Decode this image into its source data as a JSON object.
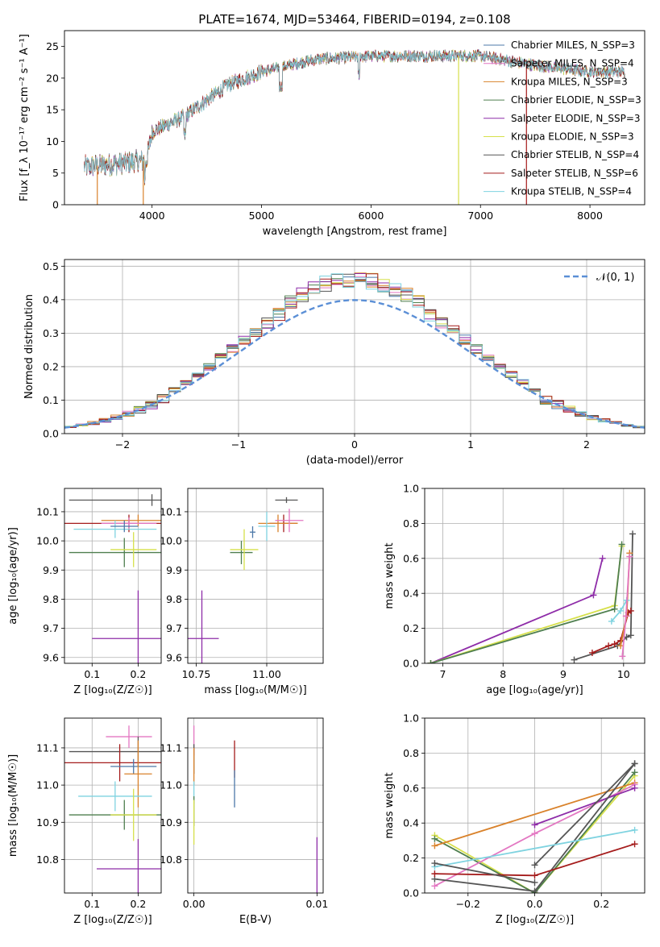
{
  "figure": {
    "title": "PLATE=1674, MJD=53464, FIBERID=0194, z=0.108"
  },
  "colors": {
    "chabrier_miles": "#4c78a8",
    "salpeter_miles": "#e377c2",
    "kroupa_miles": "#d9822b",
    "chabrier_elodie": "#4f7f4f",
    "salpeter_elodie": "#8e2ca8",
    "kroupa_elodie": "#d6e04b",
    "chabrier_stelib": "#555555",
    "salpeter_stelib": "#a51c1c",
    "kroupa_stelib": "#7fd3e0",
    "normal_curve": "#5b8fd6"
  },
  "chart_data": [
    {
      "id": "spectrum",
      "type": "line",
      "xlabel": "wavelength [Angstrom, rest frame]",
      "ylabel": "Flux [f_λ 10⁻¹⁷ erg cm⁻² s⁻¹ A⁻¹]",
      "xlim": [
        3200,
        8500
      ],
      "ylim": [
        0,
        27.5
      ],
      "xticks": [
        4000,
        5000,
        6000,
        7000,
        8000
      ],
      "yticks": [
        0,
        5,
        10,
        15,
        20,
        25
      ],
      "x_range_data": [
        3380,
        8320
      ],
      "continuum": [
        [
          3380,
          6
        ],
        [
          3700,
          6.5
        ],
        [
          3950,
          7
        ],
        [
          4000,
          11.5
        ],
        [
          4300,
          14
        ],
        [
          4700,
          19
        ],
        [
          5000,
          21
        ],
        [
          5500,
          23
        ],
        [
          6000,
          23.5
        ],
        [
          6500,
          23.5
        ],
        [
          7000,
          23.5
        ],
        [
          7500,
          22
        ],
        [
          8000,
          21
        ],
        [
          8300,
          21
        ]
      ],
      "legend": [
        {
          "label": "Chabrier MILES, N_SSP=3",
          "color_key": "chabrier_miles"
        },
        {
          "label": "Salpeter MILES, N_SSP=4",
          "color_key": "salpeter_miles"
        },
        {
          "label": "Kroupa MILES, N_SSP=3",
          "color_key": "kroupa_miles"
        },
        {
          "label": "Chabrier ELODIE, N_SSP=3",
          "color_key": "chabrier_elodie"
        },
        {
          "label": "Salpeter ELODIE, N_SSP=3",
          "color_key": "salpeter_elodie"
        },
        {
          "label": "Kroupa ELODIE, N_SSP=3",
          "color_key": "kroupa_elodie"
        },
        {
          "label": "Chabrier STELIB, N_SSP=4",
          "color_key": "chabrier_stelib"
        },
        {
          "label": "Salpeter STELIB, N_SSP=6",
          "color_key": "salpeter_stelib"
        },
        {
          "label": "Kroupa STELIB, N_SSP=4",
          "color_key": "kroupa_stelib"
        }
      ],
      "legend_placement": "upper right",
      "drops": [
        {
          "x": 3500,
          "color_key": "kroupa_miles"
        },
        {
          "x": 3920,
          "color_key": "kroupa_miles"
        },
        {
          "x": 6800,
          "color_key": "kroupa_elodie"
        },
        {
          "x": 7420,
          "color_key": "salpeter_stelib"
        }
      ]
    },
    {
      "id": "residuals",
      "type": "line",
      "xlabel": "(data-model)/error",
      "ylabel": "Normed distribution",
      "xlim": [
        -2.5,
        2.5
      ],
      "ylim": [
        0,
        0.52
      ],
      "xticks": [
        -2,
        -1,
        0,
        1,
        2
      ],
      "yticks": [
        0.0,
        0.1,
        0.2,
        0.3,
        0.4,
        0.5
      ],
      "grid": true,
      "normal_label": "𝒩(0, 1)",
      "normal_placement": "upper right",
      "bin_width": 0.1
    },
    {
      "id": "age_vs_z",
      "type": "scatter",
      "xlabel": "Z [log₁₀(Z/Z☉)]",
      "ylabel": "age  [log₁₀(age/yr)]",
      "xlim": [
        0.04,
        0.25
      ],
      "ylim": [
        9.58,
        10.18
      ],
      "xticks": [
        0.1,
        0.2
      ],
      "yticks": [
        9.6,
        9.7,
        9.8,
        9.9,
        10.0,
        10.1
      ],
      "grid": true,
      "points": [
        {
          "color_key": "chabrier_stelib",
          "x": 0.23,
          "y": 10.14,
          "xerr": 0.18,
          "yerr": 0.02
        },
        {
          "color_key": "salpeter_stelib",
          "x": 0.18,
          "y": 10.06,
          "xerr": 0.14,
          "yerr": 0.03
        },
        {
          "color_key": "kroupa_miles",
          "x": 0.2,
          "y": 10.07,
          "xerr": 0.08,
          "yerr": 0.02
        },
        {
          "color_key": "salpeter_miles",
          "x": 0.18,
          "y": 10.06,
          "xerr": 0.06,
          "yerr": 0.02
        },
        {
          "color_key": "kroupa_stelib",
          "x": 0.15,
          "y": 10.04,
          "xerr": 0.09,
          "yerr": 0.03
        },
        {
          "color_key": "chabrier_miles",
          "x": 0.17,
          "y": 10.05,
          "xerr": 0.03,
          "yerr": 0.02
        },
        {
          "color_key": "chabrier_elodie",
          "x": 0.17,
          "y": 9.96,
          "xerr": 0.12,
          "yerr": 0.05
        },
        {
          "color_key": "kroupa_elodie",
          "x": 0.19,
          "y": 9.97,
          "xerr": 0.05,
          "yerr": 0.06
        },
        {
          "color_key": "salpeter_elodie",
          "x": 0.2,
          "y": 9.665,
          "xerr": 0.1,
          "yerr": 0.165
        }
      ]
    },
    {
      "id": "age_vs_mass",
      "type": "scatter",
      "xlabel": "mass [log₁₀(M/M☉)]",
      "ylabel": "",
      "xlim": [
        10.72,
        11.2
      ],
      "ylim": [
        9.58,
        10.18
      ],
      "xticks": [
        10.75,
        11.0
      ],
      "yticks": [
        9.6,
        9.7,
        9.8,
        9.9,
        10.0,
        10.1
      ],
      "grid": true,
      "points": [
        {
          "color_key": "chabrier_stelib",
          "x": 11.07,
          "y": 10.14,
          "xerr": 0.04,
          "yerr": 0.01
        },
        {
          "color_key": "salpeter_stelib",
          "x": 11.06,
          "y": 10.06,
          "xerr": 0.05,
          "yerr": 0.03
        },
        {
          "color_key": "kroupa_miles",
          "x": 11.04,
          "y": 10.06,
          "xerr": 0.07,
          "yerr": 0.03
        },
        {
          "color_key": "salpeter_miles",
          "x": 11.08,
          "y": 10.07,
          "xerr": 0.05,
          "yerr": 0.04
        },
        {
          "color_key": "kroupa_stelib",
          "x": 11.0,
          "y": 10.05,
          "xerr": 0.03,
          "yerr": 0.05
        },
        {
          "color_key": "chabrier_miles",
          "x": 10.95,
          "y": 10.03,
          "xerr": 0.01,
          "yerr": 0.02
        },
        {
          "color_key": "chabrier_elodie",
          "x": 10.91,
          "y": 9.96,
          "xerr": 0.04,
          "yerr": 0.04
        },
        {
          "color_key": "kroupa_elodie",
          "x": 10.92,
          "y": 9.97,
          "xerr": 0.05,
          "yerr": 0.07
        },
        {
          "color_key": "salpeter_elodie",
          "x": 10.77,
          "y": 9.665,
          "xerr": 0.06,
          "yerr": 0.165
        }
      ]
    },
    {
      "id": "weight_vs_age",
      "type": "line",
      "xlabel": "age  [log₁₀(age/yr)]",
      "ylabel": "mass weight",
      "xlim": [
        6.7,
        10.35
      ],
      "ylim": [
        0,
        1.0
      ],
      "xticks": [
        7,
        8,
        9,
        10
      ],
      "yticks": [
        0.0,
        0.2,
        0.4,
        0.6,
        0.8,
        1.0
      ],
      "grid": true,
      "series": [
        {
          "color_key": "salpeter_elodie",
          "x": [
            6.8,
            9.5,
            9.65
          ],
          "y": [
            0.0,
            0.39,
            0.6
          ]
        },
        {
          "color_key": "kroupa_elodie",
          "x": [
            6.8,
            9.85,
            9.97
          ],
          "y": [
            0.0,
            0.33,
            0.67
          ]
        },
        {
          "color_key": "chabrier_elodie",
          "x": [
            6.8,
            9.85,
            9.97
          ],
          "y": [
            0.0,
            0.31,
            0.68
          ]
        },
        {
          "color_key": "chabrier_stelib",
          "x": [
            9.18,
            9.9,
            10.05,
            10.12,
            10.15
          ],
          "y": [
            0.02,
            0.1,
            0.15,
            0.16,
            0.74
          ]
        },
        {
          "color_key": "salpeter_stelib",
          "x": [
            9.48,
            9.75,
            9.85,
            9.95,
            10.08,
            10.12
          ],
          "y": [
            0.06,
            0.1,
            0.11,
            0.13,
            0.29,
            0.3
          ]
        },
        {
          "color_key": "kroupa_miles",
          "x": [
            9.95,
            10.05,
            10.1
          ],
          "y": [
            0.1,
            0.27,
            0.63
          ]
        },
        {
          "color_key": "kroupa_stelib",
          "x": [
            9.8,
            9.95,
            10.05
          ],
          "y": [
            0.24,
            0.3,
            0.36
          ]
        },
        {
          "color_key": "salpeter_miles",
          "x": [
            9.98,
            10.04,
            10.1
          ],
          "y": [
            0.04,
            0.27,
            0.61
          ]
        }
      ]
    },
    {
      "id": "mass_vs_z",
      "type": "scatter",
      "xlabel": "Z [log₁₀(Z/Z☉)]",
      "ylabel": "mass [log₁₀(M/M☉)]",
      "xlim": [
        0.04,
        0.25
      ],
      "ylim": [
        10.71,
        11.18
      ],
      "xticks": [
        0.1,
        0.2
      ],
      "yticks": [
        10.8,
        10.9,
        11.0,
        11.1
      ],
      "grid": true,
      "points": [
        {
          "color_key": "salpeter_miles",
          "x": 0.18,
          "y": 11.13,
          "xerr": 0.05,
          "yerr": 0.03
        },
        {
          "color_key": "chabrier_stelib",
          "x": 0.2,
          "y": 11.09,
          "xerr": 0.15,
          "yerr": 0.04
        },
        {
          "color_key": "salpeter_stelib",
          "x": 0.16,
          "y": 11.06,
          "xerr": 0.12,
          "yerr": 0.05
        },
        {
          "color_key": "chabrier_miles",
          "x": 0.19,
          "y": 11.05,
          "xerr": 0.05,
          "yerr": 0.02
        },
        {
          "color_key": "kroupa_miles",
          "x": 0.2,
          "y": 11.03,
          "xerr": 0.03,
          "yerr": 0.09
        },
        {
          "color_key": "kroupa_stelib",
          "x": 0.15,
          "y": 10.97,
          "xerr": 0.08,
          "yerr": 0.04
        },
        {
          "color_key": "chabrier_elodie",
          "x": 0.17,
          "y": 10.92,
          "xerr": 0.12,
          "yerr": 0.04
        },
        {
          "color_key": "kroupa_elodie",
          "x": 0.19,
          "y": 10.92,
          "xerr": 0.05,
          "yerr": 0.07
        },
        {
          "color_key": "salpeter_elodie",
          "x": 0.2,
          "y": 10.775,
          "xerr": 0.09,
          "yerr": 0.08
        }
      ]
    },
    {
      "id": "mass_vs_ebv",
      "type": "scatter",
      "xlabel": "E(B-V)",
      "ylabel": "",
      "xlim": [
        -0.0005,
        0.0105
      ],
      "ylim": [
        10.71,
        11.18
      ],
      "xticks": [
        0.0,
        0.01
      ],
      "yticks": [
        10.8,
        10.9,
        11.0,
        11.1
      ],
      "grid": true,
      "points": [
        {
          "color_key": "salpeter_miles",
          "x": 0.0,
          "y": 11.12,
          "xerr": 0.0,
          "yerr": 0.04
        },
        {
          "color_key": "chabrier_stelib",
          "x": 0.0,
          "y": 11.07,
          "xerr": 0.0,
          "yerr": 0.04
        },
        {
          "color_key": "kroupa_miles",
          "x": 0.0,
          "y": 11.05,
          "xerr": 0.0,
          "yerr": 0.05
        },
        {
          "color_key": "kroupa_stelib",
          "x": 0.0,
          "y": 10.98,
          "xerr": 0.0,
          "yerr": 0.03
        },
        {
          "color_key": "chabrier_elodie",
          "x": 0.0,
          "y": 10.93,
          "xerr": 0.0,
          "yerr": 0.04
        },
        {
          "color_key": "kroupa_elodie",
          "x": 0.0,
          "y": 10.9,
          "xerr": 0.0,
          "yerr": 0.06
        },
        {
          "color_key": "salpeter_stelib",
          "x": 0.0033,
          "y": 11.07,
          "xerr": 0.0,
          "yerr": 0.05
        },
        {
          "color_key": "chabrier_miles",
          "x": 0.0033,
          "y": 10.99,
          "xerr": 0.0,
          "yerr": 0.05
        },
        {
          "color_key": "salpeter_elodie",
          "x": 0.01,
          "y": 10.78,
          "xerr": 0.0,
          "yerr": 0.08
        }
      ]
    },
    {
      "id": "weight_vs_z",
      "type": "line",
      "xlabel": "Z [log₁₀(Z/Z☉)]",
      "ylabel": "mass weight",
      "xlim": [
        -0.33,
        0.33
      ],
      "ylim": [
        0,
        1.0
      ],
      "xticks": [
        -0.2,
        0.0,
        0.2
      ],
      "yticks": [
        0.0,
        0.2,
        0.4,
        0.6,
        0.8,
        1.0
      ],
      "grid": true,
      "series": [
        {
          "color_key": "kroupa_elodie",
          "x": [
            -0.3,
            0.0,
            0.3
          ],
          "y": [
            0.33,
            0.0,
            0.67
          ]
        },
        {
          "color_key": "chabrier_elodie",
          "x": [
            -0.3,
            0.0,
            0.3
          ],
          "y": [
            0.31,
            0.0,
            0.69
          ]
        },
        {
          "color_key": "kroupa_miles",
          "x": [
            -0.3,
            0.3
          ],
          "y": [
            0.27,
            0.63
          ]
        },
        {
          "color_key": "salpeter_miles",
          "x": [
            -0.3,
            0.0,
            0.3
          ],
          "y": [
            0.04,
            0.34,
            0.62
          ]
        },
        {
          "color_key": "salpeter_elodie",
          "x": [
            0.0,
            0.3
          ],
          "y": [
            0.39,
            0.6
          ]
        },
        {
          "color_key": "chabrier_stelib",
          "x": [
            -0.3,
            0.0,
            0.3
          ],
          "y": [
            0.08,
            0.01,
            0.74
          ]
        },
        {
          "color_key": "chabrier_stelib",
          "x": [
            0.0,
            0.3
          ],
          "y": [
            0.16,
            0.74
          ]
        },
        {
          "color_key": "kroupa_stelib",
          "x": [
            -0.3,
            0.3
          ],
          "y": [
            0.15,
            0.36
          ]
        },
        {
          "color_key": "salpeter_stelib",
          "x": [
            -0.3,
            0.0,
            0.3
          ],
          "y": [
            0.11,
            0.1,
            0.28
          ]
        },
        {
          "color_key": "chabrier_stelib",
          "x": [
            -0.3,
            0.0
          ],
          "y": [
            0.17,
            0.06
          ]
        }
      ]
    }
  ]
}
